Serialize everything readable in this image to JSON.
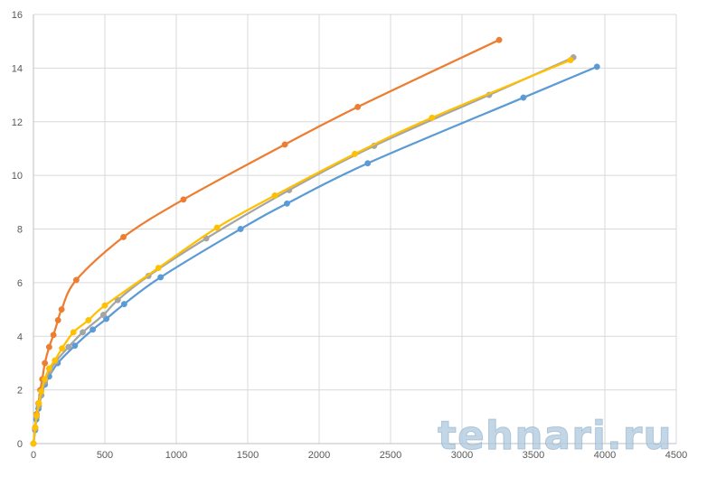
{
  "watermark": "tehnari.ru",
  "chart_data": {
    "type": "scatter",
    "title": "",
    "xlabel": "",
    "ylabel": "",
    "xlim": [
      0,
      4500
    ],
    "ylim": [
      0,
      16
    ],
    "x_ticks": [
      0,
      500,
      1000,
      1500,
      2000,
      2500,
      3000,
      3500,
      4000,
      4500
    ],
    "y_ticks": [
      0,
      2,
      4,
      6,
      8,
      10,
      12,
      14,
      16
    ],
    "grid": true,
    "legend": "none",
    "series": [
      {
        "color": "#5b9bd5",
        "points": [
          [
            0,
            0
          ],
          [
            12,
            0.5
          ],
          [
            20,
            0.9
          ],
          [
            35,
            1.3
          ],
          [
            55,
            1.8
          ],
          [
            80,
            2.2
          ],
          [
            110,
            2.5
          ],
          [
            170,
            3.0
          ],
          [
            290,
            3.65
          ],
          [
            415,
            4.25
          ],
          [
            510,
            4.65
          ],
          [
            635,
            5.2
          ],
          [
            890,
            6.2
          ],
          [
            1450,
            8.0
          ],
          [
            1775,
            8.95
          ],
          [
            2340,
            10.45
          ],
          [
            3430,
            12.9
          ],
          [
            3945,
            14.05
          ]
        ]
      },
      {
        "color": "#ed7d31",
        "points": [
          [
            0,
            0
          ],
          [
            12,
            0.6
          ],
          [
            22,
            1.1
          ],
          [
            35,
            1.5
          ],
          [
            48,
            2.0
          ],
          [
            62,
            2.4
          ],
          [
            80,
            3.0
          ],
          [
            110,
            3.6
          ],
          [
            140,
            4.05
          ],
          [
            172,
            4.6
          ],
          [
            197,
            5.0
          ],
          [
            300,
            6.1
          ],
          [
            630,
            7.7
          ],
          [
            1050,
            9.1
          ],
          [
            1760,
            11.15
          ],
          [
            2270,
            12.55
          ],
          [
            3260,
            15.05
          ]
        ]
      },
      {
        "color": "#a5a5a5",
        "points": [
          [
            0,
            0
          ],
          [
            12,
            0.55
          ],
          [
            22,
            1.0
          ],
          [
            38,
            1.4
          ],
          [
            55,
            1.8
          ],
          [
            80,
            2.3
          ],
          [
            115,
            2.7
          ],
          [
            155,
            3.05
          ],
          [
            245,
            3.6
          ],
          [
            345,
            4.15
          ],
          [
            490,
            4.8
          ],
          [
            590,
            5.35
          ],
          [
            805,
            6.25
          ],
          [
            1210,
            7.65
          ],
          [
            1790,
            9.45
          ],
          [
            2385,
            11.1
          ],
          [
            3190,
            13.0
          ],
          [
            3780,
            14.4
          ]
        ]
      },
      {
        "color": "#ffc000",
        "points": [
          [
            0,
            0
          ],
          [
            12,
            0.6
          ],
          [
            22,
            1.05
          ],
          [
            38,
            1.5
          ],
          [
            55,
            1.95
          ],
          [
            80,
            2.4
          ],
          [
            110,
            2.8
          ],
          [
            150,
            3.1
          ],
          [
            200,
            3.55
          ],
          [
            280,
            4.15
          ],
          [
            385,
            4.6
          ],
          [
            500,
            5.15
          ],
          [
            875,
            6.55
          ],
          [
            1285,
            8.05
          ],
          [
            1690,
            9.25
          ],
          [
            2250,
            10.8
          ],
          [
            2790,
            12.15
          ],
          [
            3760,
            14.3
          ]
        ]
      }
    ]
  }
}
